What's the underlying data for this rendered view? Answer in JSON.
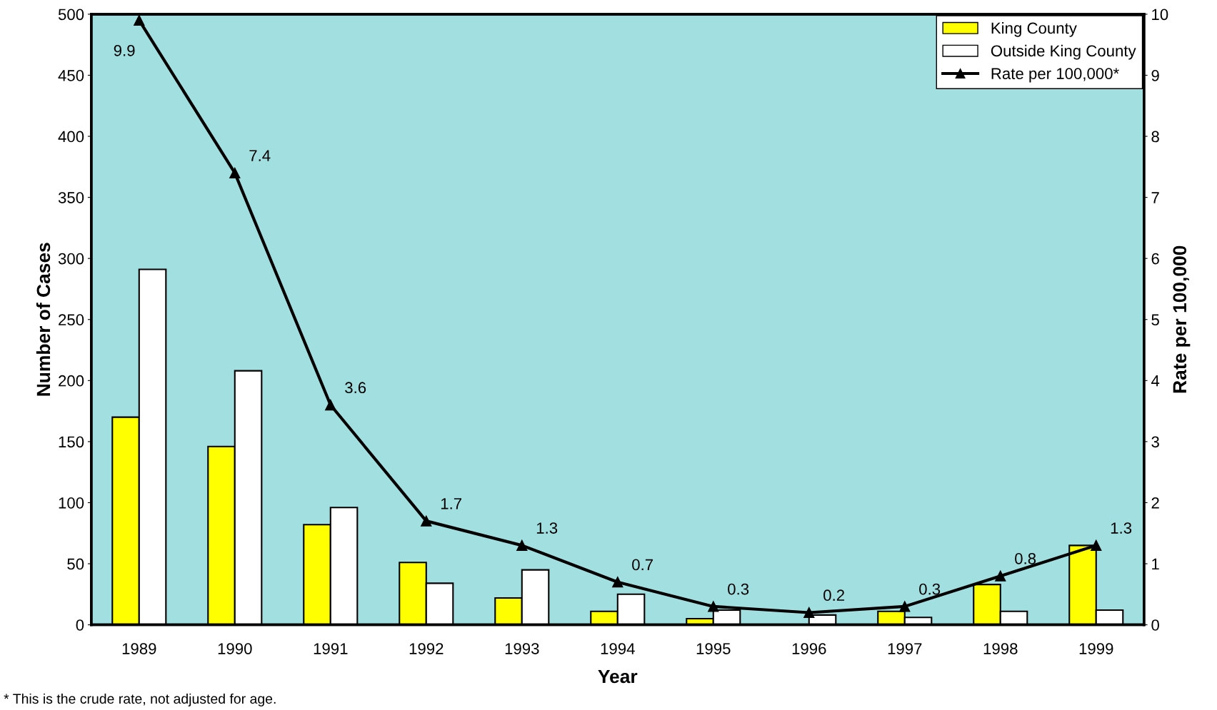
{
  "chart_data": {
    "type": "bar",
    "xlabel": "Year",
    "ylabel": "Number of Cases",
    "y2label": "Rate per 100,000",
    "categories": [
      "1989",
      "1990",
      "1991",
      "1992",
      "1993",
      "1994",
      "1995",
      "1996",
      "1997",
      "1998",
      "1999"
    ],
    "series": [
      {
        "name": "King County",
        "color": "#ffff00",
        "values": [
          170,
          146,
          82,
          51,
          22,
          11,
          5,
          null,
          11,
          33,
          65
        ]
      },
      {
        "name": "Outside King County",
        "color": "#ffffff",
        "values": [
          291,
          208,
          96,
          34,
          45,
          25,
          12,
          8,
          6,
          11,
          12
        ]
      },
      {
        "name": "Rate per 100,000*",
        "type": "line",
        "axis": "y2",
        "color": "#000000",
        "marker": "triangle",
        "values": [
          9.9,
          7.4,
          3.6,
          1.7,
          1.3,
          0.7,
          0.3,
          0.2,
          0.3,
          0.8,
          1.3
        ],
        "value_labels": [
          "9.9",
          "7.4",
          "3.6",
          "1.7",
          "1.3",
          "0.7",
          "0.3",
          "0.2",
          "0.3",
          "0.8",
          "1.3"
        ]
      }
    ],
    "ylim": [
      0,
      500
    ],
    "yticks": [
      0,
      50,
      100,
      150,
      200,
      250,
      300,
      350,
      400,
      450,
      500
    ],
    "y2lim": [
      0,
      10
    ],
    "y2ticks": [
      0,
      1,
      2,
      3,
      4,
      5,
      6,
      7,
      8,
      9,
      10
    ],
    "grid": false,
    "legend": "top right",
    "annotations": [
      "* This is the crude rate, not adjusted for age."
    ]
  }
}
